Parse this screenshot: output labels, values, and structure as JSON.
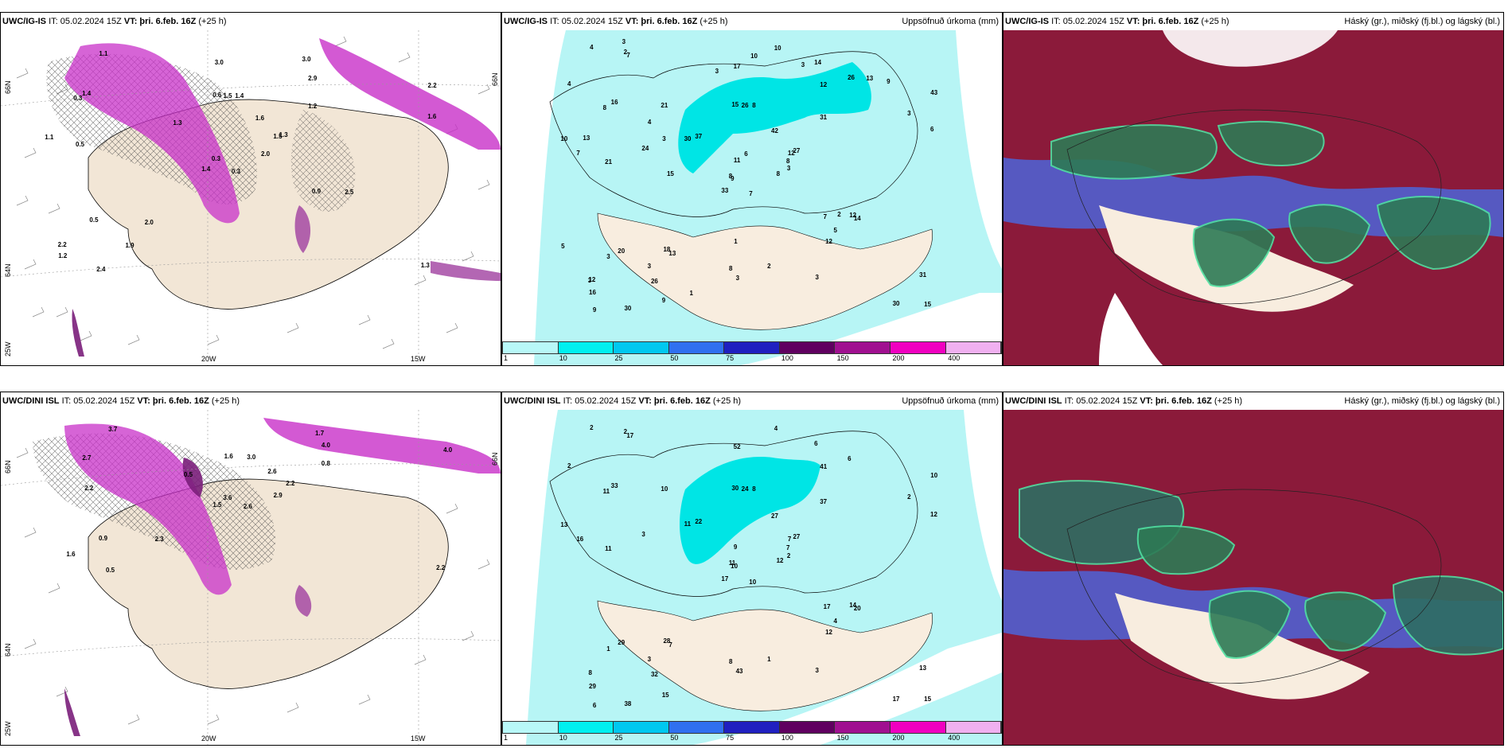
{
  "colors": {
    "land": "#f2e6d6",
    "precip_light": "#b7f5f5",
    "precip_cyan": "#00e5e5",
    "magenta": "#c830c8",
    "purple_dark": "#7a1e7a",
    "high_cloud": "#8b1a3a",
    "mid_cloud": "#2e7a55",
    "low_cloud": "#5060d0"
  },
  "panels": {
    "p1": {
      "model": "UWC/IG-IS",
      "it": "IT: 05.02.2024 15Z",
      "vt": "VT: þri. 6.feb. 16Z",
      "lead": "(+25 h)",
      "right": ""
    },
    "p2": {
      "model": "UWC/IG-IS",
      "it": "IT: 05.02.2024 15Z",
      "vt": "VT: þri. 6.feb. 16Z",
      "lead": "(+25 h)",
      "right": "Uppsöfnuð úrkoma (mm)"
    },
    "p3": {
      "model": "UWC/IG-IS",
      "it": "IT: 05.02.2024 15Z",
      "vt": "VT: þri. 6.feb. 16Z",
      "lead": "(+25 h)",
      "right": "Háský (gr.), miðský (fj.bl.) og lágský (bl.)"
    },
    "p4": {
      "model": "UWC/DINI ISL",
      "it": "IT: 05.02.2024 15Z",
      "vt": "VT: þri. 6.feb. 16Z",
      "lead": "(+25 h)",
      "right": ""
    },
    "p5": {
      "model": "UWC/DINI ISL",
      "it": "IT: 05.02.2024 15Z",
      "vt": "VT: þri. 6.feb. 16Z",
      "lead": "(+25 h)",
      "right": "Uppsöfnuð úrkoma (mm)"
    },
    "p6": {
      "model": "UWC/DINI ISL",
      "it": "IT: 05.02.2024 15Z",
      "vt": "VT: þri. 6.feb. 16Z",
      "lead": "(+25 h)",
      "right": "Háský (gr.), miðský (fj.bl.) og lágský (bl.)"
    }
  },
  "axis_labels": {
    "lon_20w": "20W",
    "lon_15w": "15W",
    "lon_25w": "25W",
    "lat_66n": "66N",
    "lat_64n": "64N"
  },
  "colorbar": {
    "labels": [
      "1",
      "10",
      "25",
      "50",
      "75",
      "100",
      "150",
      "200",
      "400"
    ],
    "colors": [
      "#b8f8f8",
      "#00f0f0",
      "#00c8f0",
      "#3070f0",
      "#2020c0",
      "#600060",
      "#a01090",
      "#f000c0",
      "#f0b0f0"
    ]
  },
  "precip_values_top": [
    "7",
    "8",
    "9",
    "12",
    "12",
    "13",
    "14",
    "8",
    "12",
    "8",
    "7",
    "15",
    "21",
    "43",
    "33",
    "31",
    "30",
    "15",
    "42",
    "20",
    "37",
    "16",
    "26",
    "26",
    "27",
    "14",
    "16",
    "17",
    "7",
    "7",
    "6",
    "8",
    "8",
    "11",
    "21",
    "26",
    "18",
    "30",
    "31",
    "12",
    "10",
    "30",
    "24",
    "12",
    "9",
    "10",
    "8",
    "9",
    "3",
    "3",
    "3",
    "3",
    "4",
    "5",
    "3",
    "3",
    "2",
    "4",
    "2",
    "9",
    "10",
    "15",
    "13",
    "4",
    "13",
    "3",
    "3",
    "3",
    "6",
    "5",
    "1",
    "1",
    "2",
    "3",
    "3"
  ],
  "precip_values_bottom": [
    "10",
    "11",
    "10",
    "8",
    "7",
    "7",
    "6",
    "8",
    "41",
    "12",
    "17",
    "15",
    "11",
    "10",
    "17",
    "37",
    "38",
    "30",
    "27",
    "29",
    "22",
    "29",
    "32",
    "24",
    "27",
    "20",
    "33",
    "52",
    "16",
    "17",
    "12",
    "11",
    "8",
    "9",
    "10",
    "6",
    "28",
    "17",
    "13",
    "14",
    "4",
    "11",
    "3",
    "12",
    "15",
    "13",
    "7",
    "6",
    "43",
    "2",
    "1",
    "2",
    "2",
    "4",
    "3",
    "3",
    "2",
    "2",
    "1"
  ],
  "overlay_labels_p1": [
    "0.3",
    "0.3",
    "0.3",
    "2.2",
    "1.5",
    "2.0",
    "3.0",
    "1.4",
    "2.9",
    "2.0",
    "1.1",
    "1.3",
    "0.5",
    "2.2",
    "1.4",
    "1.2",
    "2.4",
    "0.6",
    "1.6",
    "0.5",
    "1.3",
    "1.2",
    "1.9",
    "1.5",
    "1.3",
    "2.5",
    "1.4",
    "3.0",
    "1.1",
    "0.9",
    "1.6"
  ],
  "overlay_labels_p4": [
    "2.6",
    "2.7",
    "3.6",
    "1.6",
    "2.2",
    "2.3",
    "1.7",
    "3.0",
    "4.0",
    "2.9",
    "3.7",
    "2.2",
    "2.2",
    "4.0",
    "1.5",
    "0.8",
    "0.5",
    "1.6",
    "2.6",
    "0.9",
    "0.5"
  ]
}
